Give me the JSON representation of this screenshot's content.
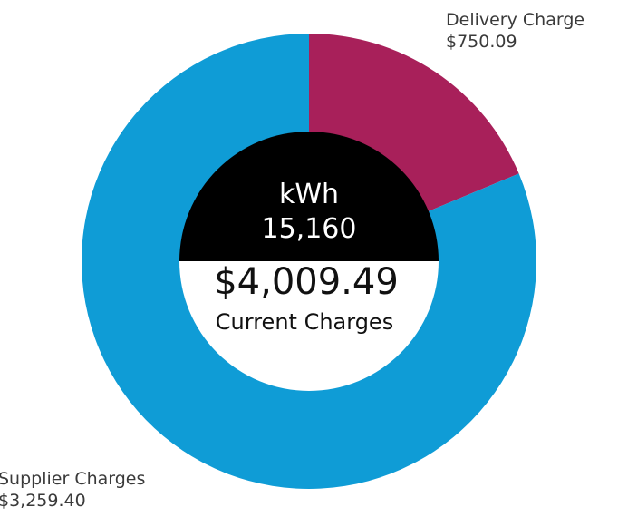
{
  "chart_data": {
    "type": "pie",
    "variant": "donut",
    "slices": [
      {
        "label": "Delivery Charge",
        "value_label": "$750.09",
        "value": 750.09,
        "color": "#a8205a"
      },
      {
        "label": "Supplier Charges",
        "value_label": "$3,259.40",
        "value": 3259.4,
        "color": "#0f9cd6"
      }
    ],
    "center": {
      "usage_label": "kWh",
      "usage_value": "15,160",
      "total": "$4,009.49",
      "total_label": "Current Charges",
      "usage_fill": "#000000",
      "hole_fill": "#ffffff"
    },
    "legend": "callouts"
  }
}
